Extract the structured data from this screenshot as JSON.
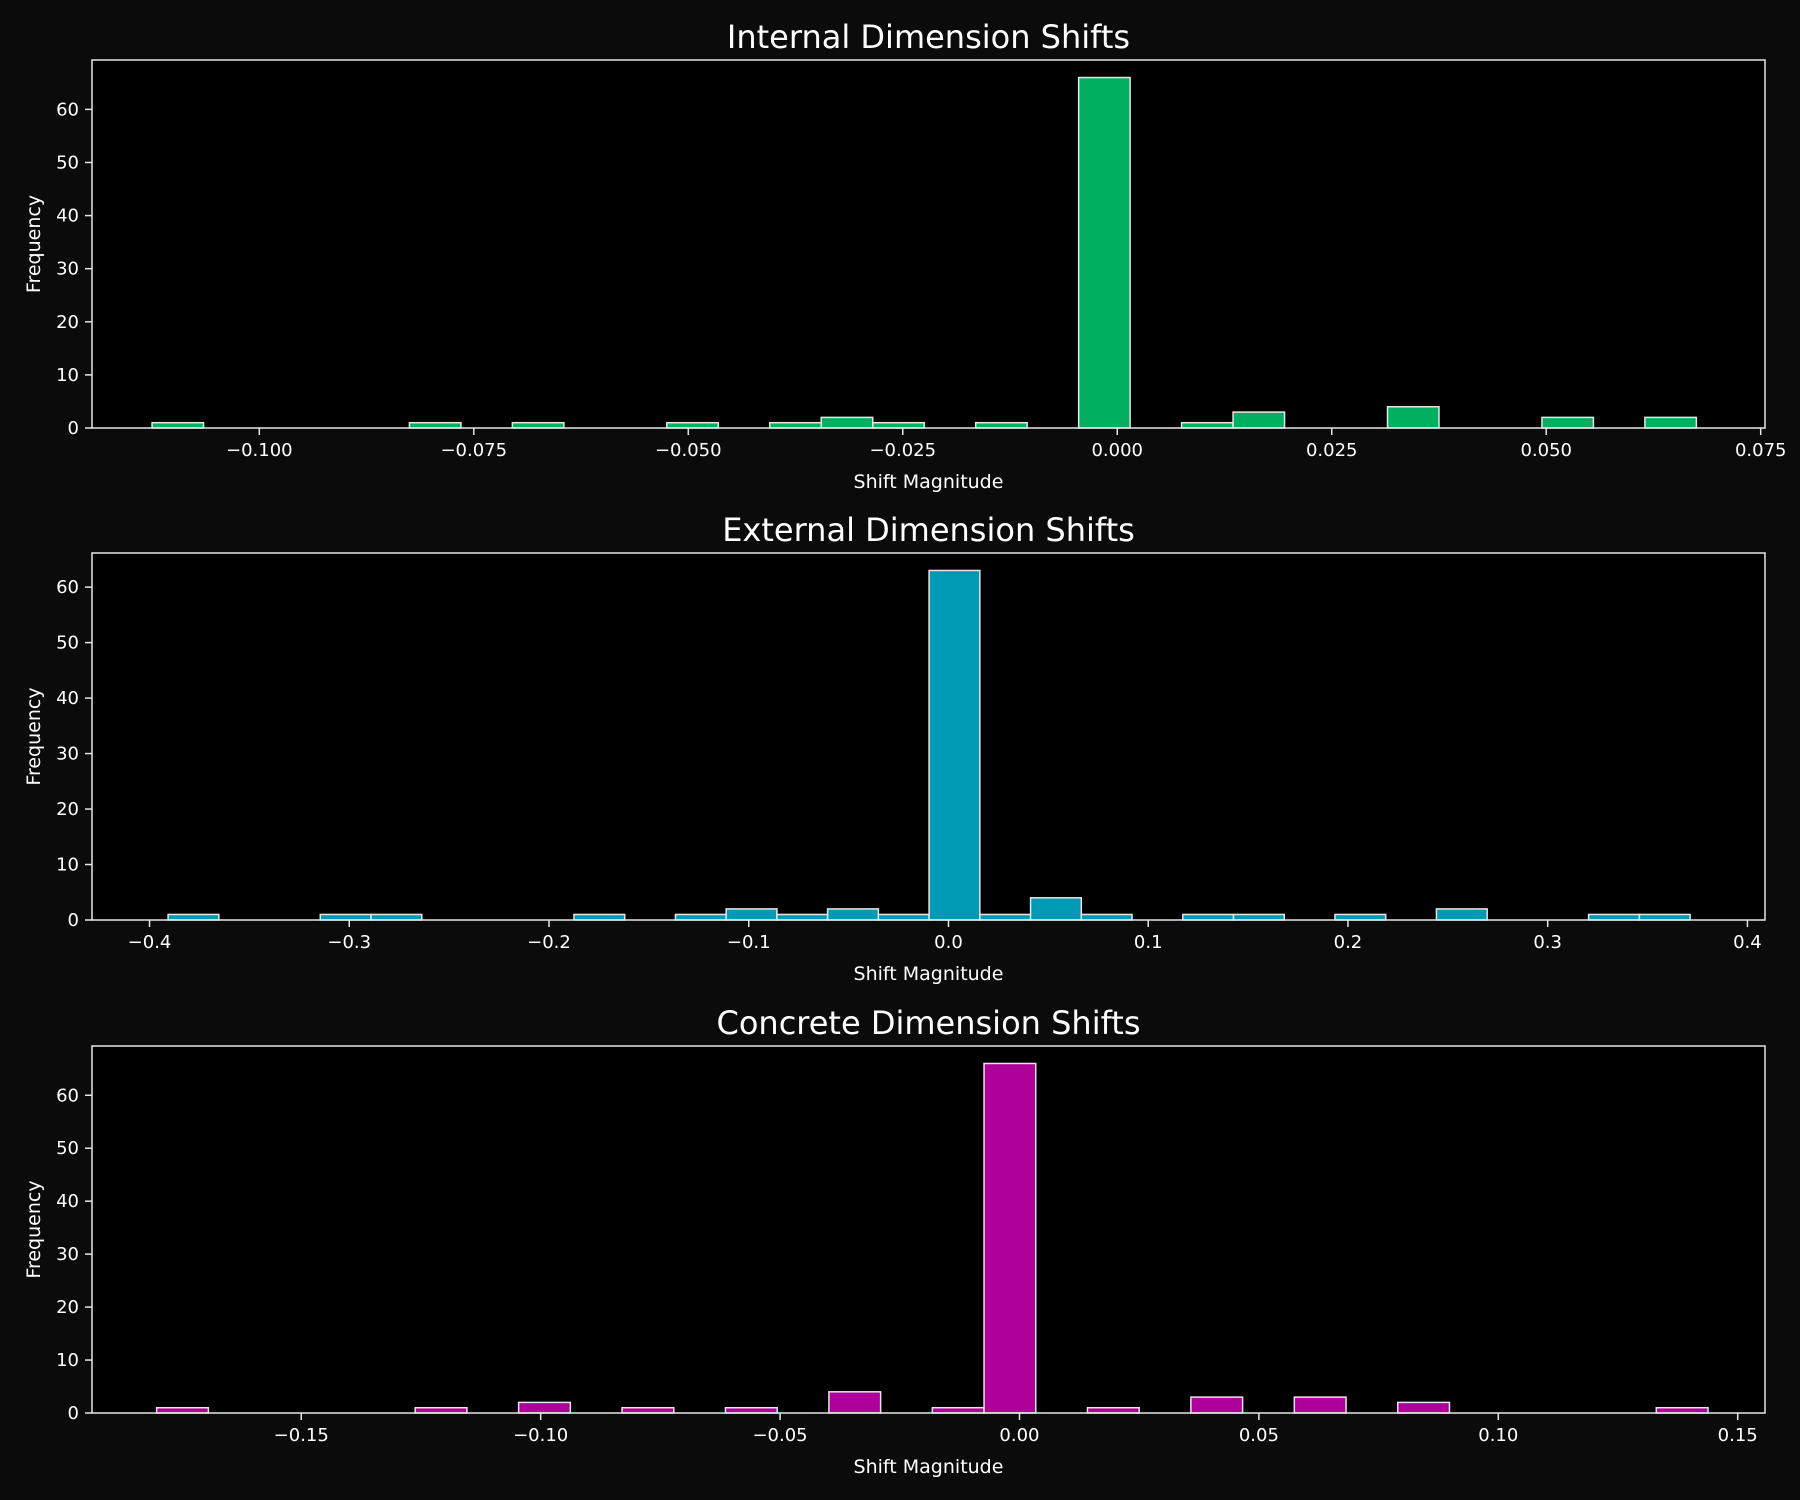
{
  "figure": {
    "background": "#0b0b0b",
    "axes_background": "#000000",
    "edge_color": "#e6e6e6",
    "text_color": "#ffffff"
  },
  "chart_data": [
    {
      "type": "bar",
      "title": "Internal Dimension Shifts",
      "xlabel": "Shift Magnitude",
      "ylabel": "Frequency",
      "color": "#00b060",
      "xlim": [
        -0.1195,
        0.0755
      ],
      "ylim": [
        0,
        69.3
      ],
      "xticks": [
        -0.1,
        -0.075,
        -0.05,
        -0.025,
        0.0,
        0.025,
        0.05,
        0.075
      ],
      "xtick_labels": [
        "−0.100",
        "−0.075",
        "−0.050",
        "−0.025",
        "0.000",
        "0.025",
        "0.050",
        "0.075"
      ],
      "yticks": [
        0,
        10,
        20,
        30,
        40,
        50,
        60
      ],
      "ytick_labels": [
        "0",
        "10",
        "20",
        "30",
        "40",
        "50",
        "60"
      ],
      "bin_edges": [
        -0.1125,
        -0.1065,
        -0.1005,
        -0.0945,
        -0.0885,
        -0.0825,
        -0.0765,
        -0.0705,
        -0.0645,
        -0.0585,
        -0.0525,
        -0.0465,
        -0.0405,
        -0.0345,
        -0.0285,
        -0.0225,
        -0.0165,
        -0.0105,
        -0.0045,
        0.0015,
        0.0075,
        0.0135,
        0.0195,
        0.0255,
        0.0315,
        0.0375,
        0.0435,
        0.0495,
        0.0555,
        0.0615,
        0.0675
      ],
      "counts": [
        1,
        0,
        0,
        0,
        0,
        1,
        0,
        1,
        0,
        0,
        1,
        0,
        1,
        2,
        1,
        0,
        1,
        0,
        66,
        0,
        1,
        3,
        0,
        0,
        4,
        0,
        0,
        2,
        0,
        2
      ]
    },
    {
      "type": "bar",
      "title": "External Dimension Shifts",
      "xlabel": "Shift Magnitude",
      "ylabel": "Frequency",
      "color": "#009ab4",
      "xlim": [
        -0.4288,
        0.4088
      ],
      "ylim": [
        0,
        66.15
      ],
      "xticks": [
        -0.4,
        -0.3,
        -0.2,
        -0.1,
        0.0,
        0.1,
        0.2,
        0.3,
        0.4
      ],
      "xtick_labels": [
        "−0.4",
        "−0.3",
        "−0.2",
        "−0.1",
        "0.0",
        "0.1",
        "0.2",
        "0.3",
        "0.4"
      ],
      "yticks": [
        0,
        10,
        20,
        30,
        40,
        50,
        60
      ],
      "ytick_labels": [
        "0",
        "10",
        "20",
        "30",
        "40",
        "50",
        "60"
      ],
      "bin_edges": [
        -0.3907,
        -0.3653,
        -0.3399,
        -0.3145,
        -0.2891,
        -0.2637,
        -0.2383,
        -0.2129,
        -0.1875,
        -0.1621,
        -0.1367,
        -0.1113,
        -0.0859,
        -0.0605,
        -0.0351,
        -0.0097,
        0.0157,
        0.0411,
        0.0665,
        0.0919,
        0.1173,
        0.1427,
        0.1681,
        0.1935,
        0.2189,
        0.2443,
        0.2697,
        0.2951,
        0.3205,
        0.3459,
        0.3713
      ],
      "counts": [
        1,
        0,
        0,
        1,
        1,
        0,
        0,
        0,
        1,
        0,
        1,
        2,
        1,
        2,
        1,
        63,
        1,
        4,
        1,
        0,
        1,
        1,
        0,
        1,
        0,
        2,
        0,
        0,
        1,
        1
      ]
    },
    {
      "type": "bar",
      "title": "Concrete Dimension Shifts",
      "xlabel": "Shift Magnitude",
      "ylabel": "Frequency",
      "color": "#b0009b",
      "xlim": [
        -0.1937,
        0.1557
      ],
      "ylim": [
        0,
        69.3
      ],
      "xticks": [
        -0.15,
        -0.1,
        -0.05,
        0.0,
        0.05,
        0.1,
        0.15
      ],
      "xtick_labels": [
        "−0.15",
        "−0.10",
        "−0.05",
        "0.00",
        "0.05",
        "0.10",
        "0.15"
      ],
      "yticks": [
        0,
        10,
        20,
        30,
        40,
        50,
        60
      ],
      "ytick_labels": [
        "0",
        "10",
        "20",
        "30",
        "40",
        "50",
        "60"
      ],
      "bin_edges": [
        -0.1802,
        -0.1694,
        -0.1586,
        -0.1478,
        -0.137,
        -0.1262,
        -0.1154,
        -0.1046,
        -0.0938,
        -0.083,
        -0.0722,
        -0.0614,
        -0.0506,
        -0.0398,
        -0.029,
        -0.0182,
        -0.0074,
        0.0034,
        0.0142,
        0.025,
        0.0358,
        0.0466,
        0.0574,
        0.0682,
        0.079,
        0.0898,
        0.1006,
        0.1114,
        0.1222,
        0.133,
        0.1438
      ],
      "counts": [
        1,
        0,
        0,
        0,
        0,
        1,
        0,
        2,
        0,
        1,
        0,
        1,
        0,
        4,
        0,
        1,
        66,
        0,
        1,
        0,
        3,
        0,
        3,
        0,
        2,
        0,
        0,
        0,
        0,
        1
      ]
    }
  ]
}
